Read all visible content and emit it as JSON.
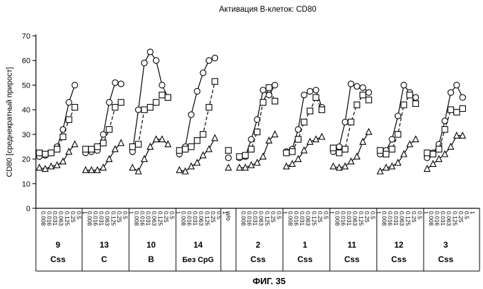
{
  "chart_data": {
    "type": "line",
    "title": "Активация В-клеток: CD80",
    "ylabel": "CD80 [среднекратный прирост]",
    "ylim": [
      0,
      70
    ],
    "yticks": [
      0,
      10,
      20,
      30,
      40,
      50,
      60,
      70
    ],
    "figure_label": "ФИГ. 35",
    "dose_labels": [
      "0.008",
      "0.016",
      "0.031",
      "0.063",
      "0.125",
      "0.25",
      "0.5",
      "1"
    ],
    "series_markers": [
      "circle",
      "square",
      "triangle"
    ],
    "wo_label": "w/o",
    "wo_values": {
      "circle": 20.5,
      "square": 23.5,
      "triangle": 16.5
    },
    "groups": [
      {
        "number": "9",
        "type": "Css",
        "circle": [
          21,
          21.5,
          22.5,
          25,
          32,
          43,
          50
        ],
        "square": [
          22.5,
          22,
          22.5,
          24,
          29,
          36,
          41
        ],
        "triangle": [
          16.5,
          16,
          17,
          17.5,
          19,
          23,
          26
        ]
      },
      {
        "number": "13",
        "type": "C",
        "circle": [
          22.5,
          23,
          23.5,
          30,
          43,
          51,
          50.5
        ],
        "square": [
          24,
          24,
          25,
          26.5,
          32,
          41,
          43
        ],
        "triangle": [
          15.5,
          15.5,
          15.5,
          16.5,
          20,
          24,
          26.5
        ]
      },
      {
        "number": "10",
        "type": "B",
        "circle": [
          23,
          40,
          59,
          63.5,
          60,
          50,
          45
        ],
        "square": [
          25,
          26,
          40,
          41,
          43,
          46,
          45
        ],
        "triangle": [
          16.5,
          15,
          20,
          25,
          28,
          28,
          26
        ]
      },
      {
        "number": "14",
        "type": "Без CpG",
        "circle": [
          22,
          25,
          38,
          47.5,
          55,
          60,
          61
        ],
        "square": [
          23.5,
          24,
          25,
          27.5,
          30,
          41,
          51.5
        ],
        "triangle": [
          15.5,
          15,
          17,
          18.5,
          21.5,
          24,
          28.5
        ]
      },
      {
        "number": "2",
        "type": "Css",
        "circle": [
          20.5,
          21,
          28,
          36,
          48,
          46,
          50
        ],
        "square": [
          21,
          21.5,
          24,
          31,
          43,
          49,
          43.5
        ],
        "triangle": [
          16.5,
          16.5,
          17.5,
          18.5,
          21,
          27.5,
          30
        ]
      },
      {
        "number": "1",
        "type": "Css",
        "circle": [
          23,
          24,
          32,
          46,
          47.5,
          48,
          41
        ],
        "square": [
          22.5,
          23,
          28,
          35,
          39.5,
          45,
          40
        ],
        "triangle": [
          17,
          18,
          20,
          23.5,
          27,
          28,
          29
        ]
      },
      {
        "number": "11",
        "type": "Css",
        "circle": [
          23,
          25,
          35,
          50.5,
          49.5,
          49,
          47
        ],
        "square": [
          24.5,
          22.5,
          24,
          35,
          42,
          46,
          44
        ],
        "triangle": [
          17,
          16.5,
          17,
          19,
          21,
          27,
          31
        ]
      },
      {
        "number": "12",
        "type": "Css",
        "circle": [
          22,
          23.5,
          28,
          37.5,
          50,
          47,
          45
        ],
        "square": [
          23.5,
          22,
          24,
          30,
          42,
          46,
          42.5
        ],
        "triangle": [
          15,
          16.5,
          17,
          18.5,
          22,
          26,
          28
        ]
      },
      {
        "number": "3",
        "type": "Css",
        "circle": [
          20.5,
          22.5,
          26,
          35.5,
          47,
          50,
          45
        ],
        "square": [
          22.5,
          22,
          24,
          32,
          40,
          39,
          40.5
        ],
        "triangle": [
          16,
          18,
          20,
          22,
          25,
          29.5,
          29.5
        ]
      }
    ]
  }
}
